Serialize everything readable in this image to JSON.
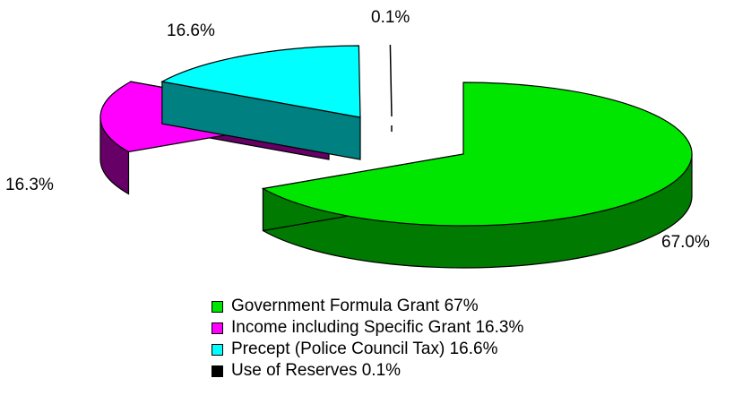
{
  "chart_data": {
    "type": "pie",
    "style": "3d-exploded",
    "title": "",
    "slices": [
      {
        "name": "Government Formula Grant",
        "value": 67.0,
        "label": "67.0%",
        "legend": "Government Formula Grant 67%",
        "color": "#00e600",
        "side_color": "#007a00"
      },
      {
        "name": "Income including Specific Grant",
        "value": 16.3,
        "label": "16.3%",
        "legend": "Income including Specific Grant 16.3%",
        "color": "#ff00ff",
        "side_color": "#660066"
      },
      {
        "name": "Precept (Police Council Tax)",
        "value": 16.6,
        "label": "16.6%",
        "legend": "Precept (Police Council Tax) 16.6%",
        "color": "#00ffff",
        "side_color": "#008080"
      },
      {
        "name": "Use of Reserves",
        "value": 0.1,
        "label": "0.1%",
        "legend": "Use of Reserves 0.1%",
        "color": "#000000",
        "side_color": "#000000"
      }
    ],
    "legend_position": "bottom"
  }
}
